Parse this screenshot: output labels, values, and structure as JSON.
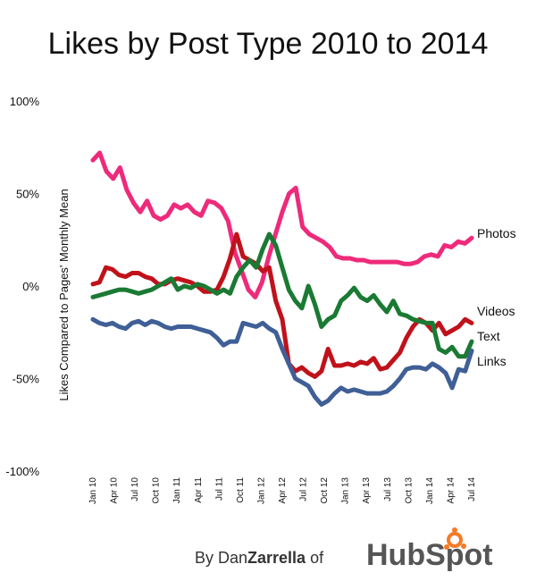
{
  "chart_data": {
    "type": "line",
    "title": "Likes by Post Type 2010 to 2014",
    "ylabel": "Likes Compared to Pages' Monthly Mean",
    "xlabel": "",
    "ylim": [
      -100,
      100
    ],
    "yticks": [
      {
        "value": 100,
        "label": "100%"
      },
      {
        "value": 50,
        "label": "50%"
      },
      {
        "value": 0,
        "label": "0%"
      },
      {
        "value": -50,
        "label": "-50%"
      },
      {
        "value": -100,
        "label": "-100%"
      }
    ],
    "x_tick_labels": [
      "Jan 10",
      "Apr 10",
      "Jul 10",
      "Oct 10",
      "Jan 11",
      "Apr 11",
      "Jul 11",
      "Oct 11",
      "Jan 12",
      "Apr 12",
      "Jul 12",
      "Oct 12",
      "Jan 13",
      "Apr 13",
      "Jul 13",
      "Oct 13",
      "Jan 14",
      "Apr 14",
      "Jul 14"
    ],
    "x_start": "Jan 10",
    "x_months": 55,
    "grid": false,
    "legend": "labels at line ends",
    "series": [
      {
        "name": "Photos",
        "color": "#ee2a7b",
        "values": [
          68,
          72,
          62,
          58,
          64,
          52,
          45,
          40,
          46,
          38,
          36,
          38,
          44,
          42,
          44,
          40,
          38,
          46,
          45,
          42,
          35,
          18,
          8,
          -2,
          -6,
          2,
          16,
          28,
          40,
          50,
          53,
          32,
          28,
          26,
          24,
          21,
          16,
          15,
          15,
          14,
          14,
          13,
          13,
          13,
          13,
          13,
          12,
          12,
          13,
          16,
          17,
          16,
          22,
          21,
          24,
          23,
          26
        ]
      },
      {
        "name": "Videos",
        "color": "#c0121b",
        "values": [
          1,
          2,
          10,
          9,
          6,
          5,
          7,
          7,
          5,
          4,
          1,
          1,
          3,
          4,
          3,
          2,
          0,
          -3,
          -3,
          -2,
          5,
          15,
          28,
          16,
          14,
          12,
          8,
          10,
          -8,
          -18,
          -42,
          -46,
          -44,
          -47,
          -49,
          -46,
          -34,
          -43,
          -43,
          -42,
          -43,
          -41,
          -42,
          -39,
          -45,
          -44,
          -40,
          -36,
          -28,
          -22,
          -18,
          -20,
          -24,
          -20,
          -26,
          -24,
          -22,
          -18,
          -20
        ]
      },
      {
        "name": "Text",
        "color": "#1a7a33",
        "values": [
          -6,
          -5,
          -4,
          -3,
          -2,
          -2,
          -3,
          -4,
          -3,
          -2,
          0,
          2,
          4,
          -2,
          0,
          -1,
          1,
          0,
          -2,
          -4,
          -2,
          -4,
          5,
          10,
          14,
          10,
          20,
          28,
          22,
          10,
          -2,
          -8,
          -12,
          0,
          -10,
          -22,
          -18,
          -16,
          -8,
          -5,
          -1,
          -6,
          -8,
          -5,
          -10,
          -14,
          -8,
          -15,
          -16,
          -18,
          -19,
          -20,
          -20,
          -34,
          -36,
          -33,
          -38,
          -38,
          -30
        ]
      },
      {
        "name": "Links",
        "color": "#3f5f96",
        "values": [
          -18,
          -20,
          -21,
          -20,
          -22,
          -23,
          -20,
          -19,
          -21,
          -19,
          -20,
          -22,
          -23,
          -22,
          -22,
          -22,
          -23,
          -24,
          -25,
          -28,
          -32,
          -30,
          -30,
          -20,
          -21,
          -22,
          -20,
          -23,
          -25,
          -34,
          -42,
          -50,
          -52,
          -54,
          -60,
          -64,
          -62,
          -58,
          -55,
          -57,
          -56,
          -57,
          -58,
          -58,
          -58,
          -57,
          -54,
          -50,
          -45,
          -44,
          -44,
          -45,
          -42,
          -44,
          -47,
          -55,
          -45,
          -46,
          -35
        ]
      }
    ]
  },
  "credit": {
    "prefix": "By Dan",
    "name": "Zarrella",
    "of": " of ",
    "brand": "HubSpot"
  },
  "colors": {
    "brand_orange": "#f47b28",
    "brand_gray": "#555555"
  }
}
